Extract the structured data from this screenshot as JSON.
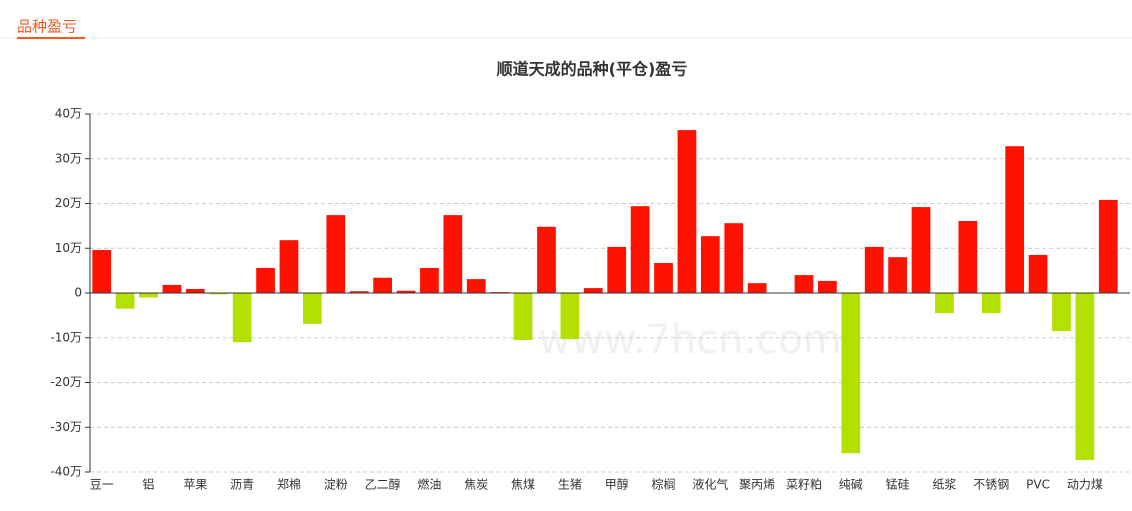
{
  "header": {
    "title": "品种盈亏"
  },
  "chart_data": {
    "type": "bar",
    "title": "顺道天成的品种(平仓)盈亏",
    "watermark": "www.7hcn.com",
    "categories": [
      "豆一",
      null,
      "铝",
      null,
      "苹果",
      null,
      "沥青",
      null,
      "郑棉",
      null,
      "淀粉",
      null,
      "乙二醇",
      null,
      "燃油",
      null,
      "焦炭",
      null,
      "焦煤",
      null,
      "生猪",
      null,
      "甲醇",
      null,
      "棕榈",
      null,
      "液化气",
      null,
      "聚丙烯",
      null,
      "菜籽粕",
      null,
      "纯碱",
      null,
      "锰硅",
      null,
      "纸浆",
      null,
      "不锈钢",
      null,
      "PVC",
      null,
      "动力煤",
      null
    ],
    "values": [
      9.6,
      -3.5,
      -1,
      1.8,
      0.9,
      -0.3,
      -11,
      5.6,
      11.8,
      -6.9,
      17.4,
      0.4,
      3.4,
      0.5,
      5.6,
      17.4,
      3.1,
      0.2,
      -10.5,
      14.8,
      -10.3,
      1.1,
      10.3,
      19.4,
      6.7,
      36.4,
      12.7,
      15.6,
      2.2,
      -0.1,
      4.0,
      2.7,
      -35.8,
      10.3,
      8.0,
      19.2,
      -4.5,
      16.1,
      -4.5,
      32.8,
      8.5,
      -8.5,
      -37.3,
      20.8
    ],
    "positive_color": "#ff1100",
    "negative_color": "#b3e000",
    "ylim": [
      -40,
      40
    ],
    "yticks": [
      {
        "value": -40,
        "label": "-40万"
      },
      {
        "value": -30,
        "label": "-30万"
      },
      {
        "value": -20,
        "label": "-20万"
      },
      {
        "value": -10,
        "label": "-10万"
      },
      0,
      {
        "value": 10,
        "label": "10万"
      },
      {
        "value": 20,
        "label": "20万"
      },
      {
        "value": 30,
        "label": "30万"
      },
      {
        "value": 40,
        "label": "40万"
      }
    ],
    "grid": true
  }
}
